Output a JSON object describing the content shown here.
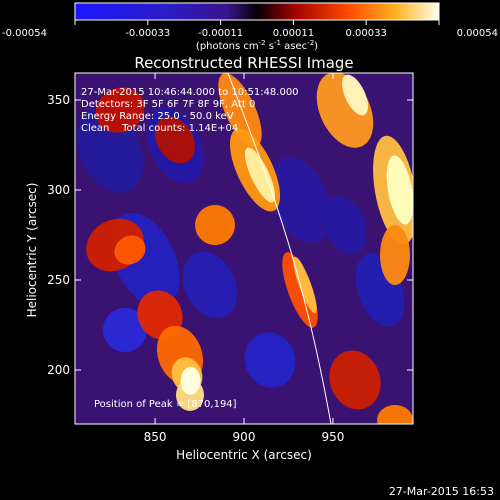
{
  "chart_data": {
    "type": "heatmap",
    "title": "Reconstructed RHESSI Image",
    "xlabel": "Heliocentric X (arcsec)",
    "ylabel": "Heliocentric Y (arcsec)",
    "xlim": [
      805,
      995
    ],
    "ylim": [
      170,
      365
    ],
    "x_ticks": [
      850,
      900,
      950
    ],
    "y_ticks": [
      200,
      250,
      300,
      350
    ],
    "colorbar": {
      "ticks": [
        "-0.00054",
        "-0.00033",
        "-0.00011",
        "0.00011",
        "0.00033",
        "0.00054"
      ],
      "range": [
        -0.00054,
        0.00054
      ],
      "units_prefix": "(photons cm",
      "units_sup1": "-2",
      "units_mid1": " s",
      "units_sup2": "-1",
      "units_mid2": " asec",
      "units_sup3": "-2",
      "units_suffix": ")"
    },
    "annotations": {
      "time_range": "27-Mar-2015 10:46:44.000 to 10:51:48.000",
      "detectors": "Detectors: 3F 5F 6F 7F 8F 9F, Att 0",
      "energy": "Energy Range: 25.0 - 50.0 keV",
      "method": "Clean    Total counts: 1.14E+04",
      "peak": "Position of Peak = [870,194]"
    },
    "peak_position": [
      870,
      194
    ],
    "colors": {
      "background": "#000000",
      "foreground": "#ffffff"
    }
  },
  "footer": {
    "timestamp": "27-Mar-2015 16:53"
  }
}
